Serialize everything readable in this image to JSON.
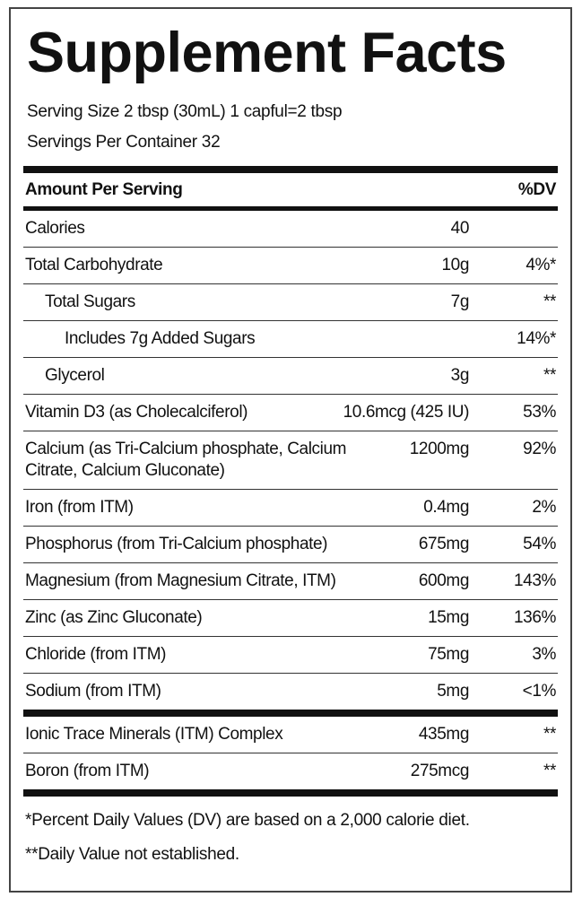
{
  "title": "Supplement Facts",
  "serving_size": "Serving Size 2 tbsp (30mL) 1 capful=2 tbsp",
  "servings_per_container": "Servings Per Container 32",
  "header": {
    "amount": "Amount Per Serving",
    "dv": "%DV"
  },
  "rows": [
    [
      "Calories",
      "40"
    ],
    [
      "Total Carbohydrate",
      "10g",
      "4%*"
    ],
    [
      "Total Sugars",
      "7g",
      "**"
    ],
    [
      "Includes 7g Added Sugars",
      "",
      "14%*"
    ],
    [
      "Glycerol",
      "3g",
      "**"
    ],
    [
      "Vitamin D3 (as Cholecalciferol)",
      "10.6mcg (425 IU)",
      "53%"
    ],
    [
      "Calcium (as Tri-Calcium phosphate, Calcium Citrate, Calcium Gluconate)",
      "1200mg",
      "92%"
    ],
    [
      "Iron (from ITM)",
      "0.4mg",
      "2%"
    ],
    [
      "Phosphorus (from Tri-Calcium phosphate)",
      "675mg",
      "54%"
    ],
    [
      "Magnesium (from Magnesium Citrate, ITM)",
      "600mg",
      "143%"
    ],
    [
      "Zinc (as Zinc Gluconate)",
      "15mg",
      "136%"
    ],
    [
      "Chloride (from ITM)",
      "75mg",
      "3%"
    ],
    [
      "Sodium (from ITM)",
      "5mg",
      "<1%"
    ]
  ],
  "other_rows": [
    [
      "Ionic Trace Minerals (ITM) Complex",
      "435mg",
      "**"
    ],
    [
      "Boron (from ITM)",
      "275mcg",
      "**"
    ]
  ],
  "footnotes": [
    "*Percent Daily Values (DV) are based on a 2,000 calorie diet.",
    "**Daily Value not established."
  ]
}
